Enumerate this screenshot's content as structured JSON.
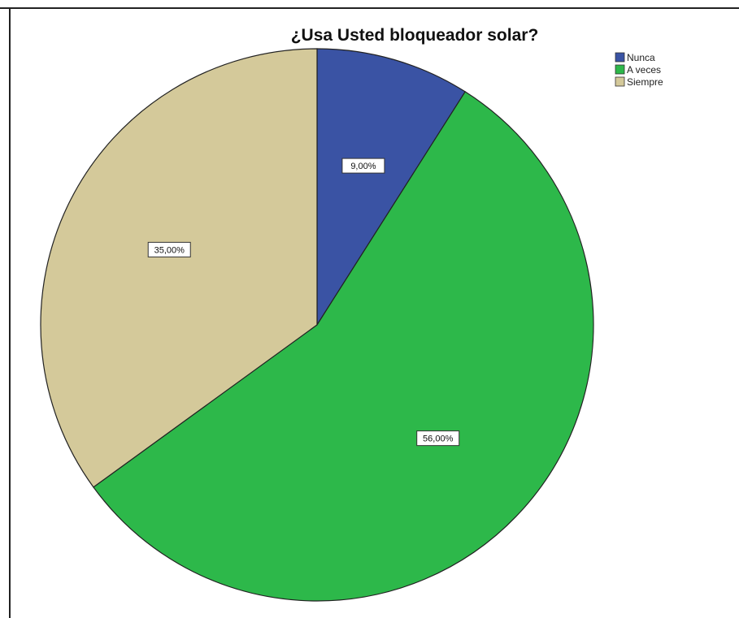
{
  "chart_data": {
    "type": "pie",
    "title": "¿Usa Usted bloqueador solar?",
    "categories": [
      "Nunca",
      "A veces",
      "Siempre"
    ],
    "values": [
      9.0,
      56.0,
      35.0
    ],
    "data_labels": [
      "9,00%",
      "56,00%",
      "35,00%"
    ],
    "colors": [
      "#3a53a4",
      "#2db84a",
      "#d4c99a"
    ],
    "legend": {
      "position": "top-right",
      "entries": [
        "Nunca",
        "A veces",
        "Siempre"
      ]
    },
    "start_angle": "12 o'clock",
    "direction": "clockwise"
  }
}
